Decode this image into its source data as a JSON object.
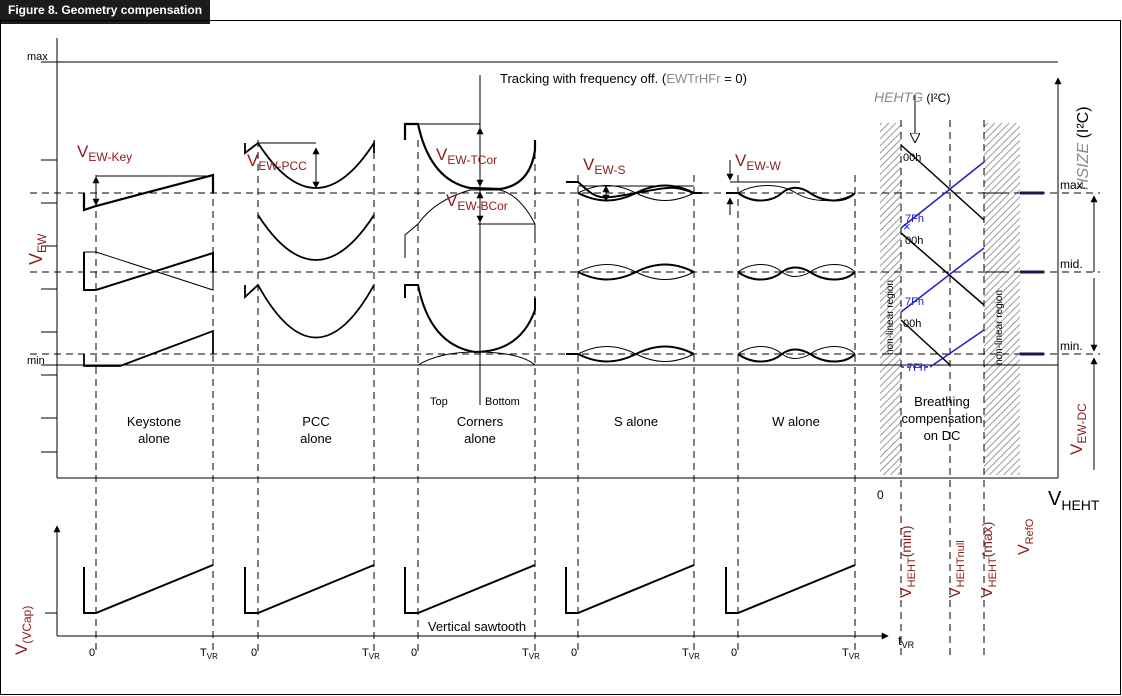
{
  "figure_title": "Figure 8.    Geometry compensation",
  "tracking": {
    "main": "Tracking with frequency off. (",
    "register": "EWTrHFr",
    "tail": " = 0)"
  },
  "levels": {
    "max": "max",
    "min": "min"
  },
  "y_axis_label": {
    "main": "V",
    "sub": "EW"
  },
  "hsize": {
    "name": "HSIZE",
    "tail": " (I²C)"
  },
  "hehtg": {
    "name": "HEHTG",
    "tail": " (I²C)"
  },
  "panels": [
    {
      "label1": "Keystone",
      "label2": "alone",
      "param_main": "V",
      "param_sub": "EW-Key"
    },
    {
      "label1": "PCC",
      "label2": "alone",
      "param_main": "V",
      "param_sub": "EW-PCC"
    },
    {
      "label1": "Corners",
      "label2": "alone",
      "param_main": "V",
      "param_sub": "EW-TCor",
      "param2_main": "V",
      "param2_sub": "EW-BCor",
      "top": "Top",
      "bottom": "Bottom"
    },
    {
      "label1": "S alone",
      "label2": "",
      "param_main": "V",
      "param_sub": "EW-S"
    },
    {
      "label1": "W alone",
      "label2": "",
      "param_main": "V",
      "param_sub": "EW-W"
    }
  ],
  "breathing": {
    "line1": "Breathing",
    "line2": "compensation",
    "line3": "on DC"
  },
  "nonlinear": "non-linear region",
  "hex": {
    "top": "00h",
    "bottom": "7Fh"
  },
  "right_levels": {
    "max": "max.",
    "mid": "mid.",
    "min": "min."
  },
  "vewdc": {
    "main": "V",
    "sub": "EW-DC"
  },
  "vheht": {
    "main": "V",
    "sub": "HEHT"
  },
  "heht_ticks": [
    {
      "main": "V",
      "sub": "HEHT",
      "tail": "(min)"
    },
    {
      "main": "V",
      "sub": "HEHTnull",
      "tail": ""
    },
    {
      "main": "V",
      "sub": "HEHT",
      "tail": "(max)"
    },
    {
      "main": "V",
      "sub": "RefO",
      "tail": ""
    }
  ],
  "zero": "0",
  "vcap": {
    "main": "V",
    "sub": "(VCap)"
  },
  "sawtooth_label": "Vertical sawtooth",
  "tvr": {
    "main": "T",
    "sub": "VR"
  },
  "tvr_axis": {
    "main": "t",
    "sub": "VR"
  },
  "colors": {
    "accent_red": "#8b1a1a",
    "blue": "#2020c8",
    "gray": "#8a8a8a",
    "hatch": "#b8b8b8"
  }
}
